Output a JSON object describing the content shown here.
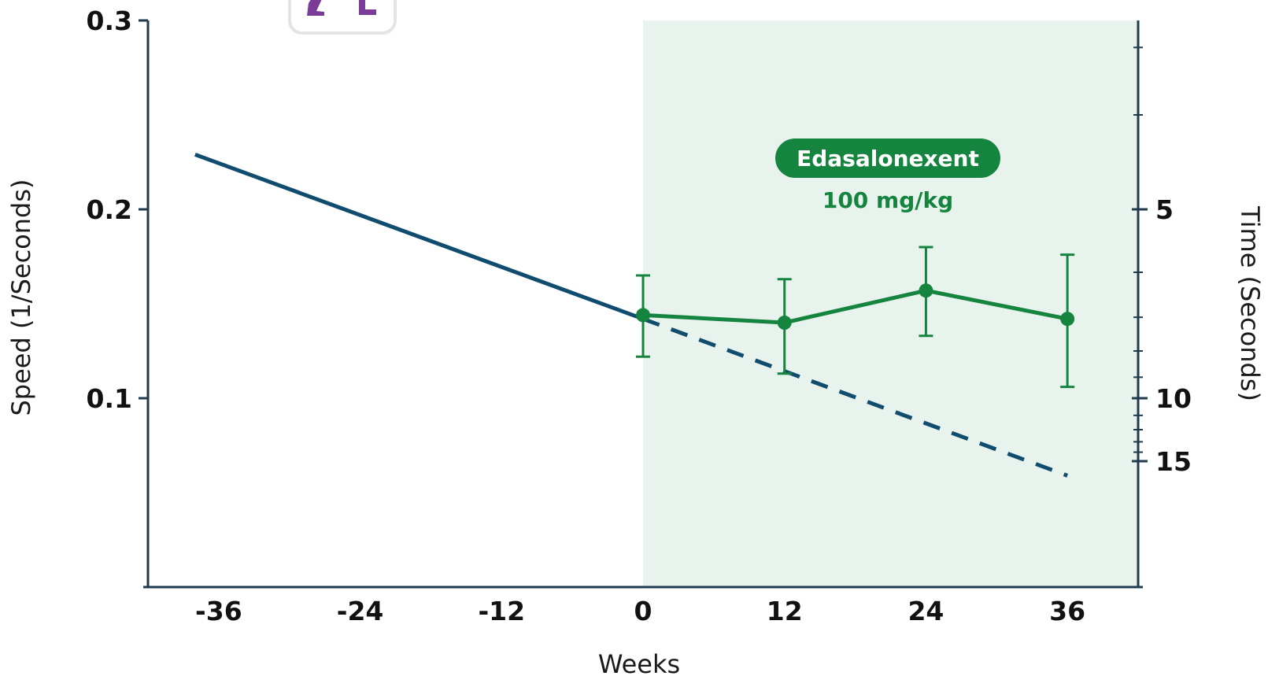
{
  "chart_data": {
    "type": "line",
    "xlabel": "Weeks",
    "ylabel": "Speed (1/Seconds)",
    "y2label": "Time (Seconds)",
    "xlim": [
      -42,
      42
    ],
    "ylim": [
      0,
      0.3
    ],
    "x_ticks": [
      -36,
      -24,
      -12,
      0,
      12,
      24,
      36
    ],
    "y_ticks": [
      0.1,
      0.2,
      0.3
    ],
    "y_tick_labels": [
      "0.1",
      "0.2",
      "0.3"
    ],
    "y2_ticks_seconds": [
      5,
      10,
      15
    ],
    "y2_tick_labels": [
      "5",
      "10",
      "15"
    ],
    "y2_minor_ticks_seconds": [
      4,
      6,
      7,
      8,
      9,
      11,
      12,
      13,
      14
    ],
    "shaded_region": {
      "x_start": 0,
      "x_end": 42,
      "color": "#e9f3ee"
    },
    "annotation": {
      "badge": "Edasalonexent",
      "dose": "100 mg/kg",
      "badge_color": "#15843f"
    },
    "series": [
      {
        "style": "solid",
        "color": "#0f4c6e",
        "x": [
          -38,
          0
        ],
        "y": [
          0.229,
          0.142
        ]
      },
      {
        "style": "dashed",
        "color": "#0f4c6e",
        "x": [
          0,
          36
        ],
        "y": [
          0.142,
          0.059
        ]
      },
      {
        "style": "solid-markers",
        "color": "#15843f",
        "x": [
          0,
          12,
          24,
          36
        ],
        "y": [
          0.144,
          0.14,
          0.157,
          0.142
        ],
        "error_low": [
          0.122,
          0.113,
          0.133,
          0.106
        ],
        "error_high": [
          0.165,
          0.163,
          0.18,
          0.176
        ]
      }
    ]
  }
}
